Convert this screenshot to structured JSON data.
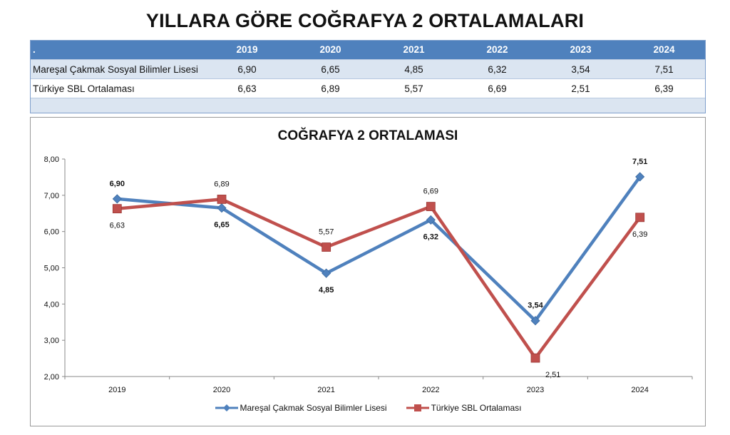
{
  "page_title": "YILLARA GÖRE COĞRAFYA 2 ORTALAMALARI",
  "table": {
    "corner": ".",
    "columns": [
      "2019",
      "2020",
      "2021",
      "2022",
      "2023",
      "2024"
    ],
    "rows": [
      {
        "label": "Mareşal Çakmak Sosyal Bilimler Lisesi",
        "values": [
          "6,90",
          "6,65",
          "4,85",
          "6,32",
          "3,54",
          "7,51"
        ]
      },
      {
        "label": "Türkiye SBL Ortalaması",
        "values": [
          "6,63",
          "6,89",
          "5,57",
          "6,69",
          "2,51",
          "6,39"
        ]
      }
    ]
  },
  "chart_data": {
    "type": "line",
    "title": "COĞRAFYA 2 ORTALAMASI",
    "categories": [
      "2019",
      "2020",
      "2021",
      "2022",
      "2023",
      "2024"
    ],
    "ylim": [
      2,
      8
    ],
    "yticks": [
      "2,00",
      "3,00",
      "4,00",
      "5,00",
      "6,00",
      "7,00",
      "8,00"
    ],
    "grid": false,
    "legend": "bottom",
    "series": [
      {
        "name": "Mareşal Çakmak Sosyal Bilimler Lisesi",
        "values": [
          6.9,
          6.65,
          4.85,
          6.32,
          3.54,
          7.51
        ],
        "labels": [
          "6,90",
          "6,65",
          "4,85",
          "6,32",
          "3,54",
          "7,51"
        ],
        "color": "#4f81bd",
        "marker": "diamond"
      },
      {
        "name": "Türkiye SBL Ortalaması",
        "values": [
          6.63,
          6.89,
          5.57,
          6.69,
          2.51,
          6.39
        ],
        "labels": [
          "6,63",
          "6,89",
          "5,57",
          "6,69",
          "2,51",
          "6,39"
        ],
        "color": "#c0504d",
        "marker": "square"
      }
    ]
  }
}
